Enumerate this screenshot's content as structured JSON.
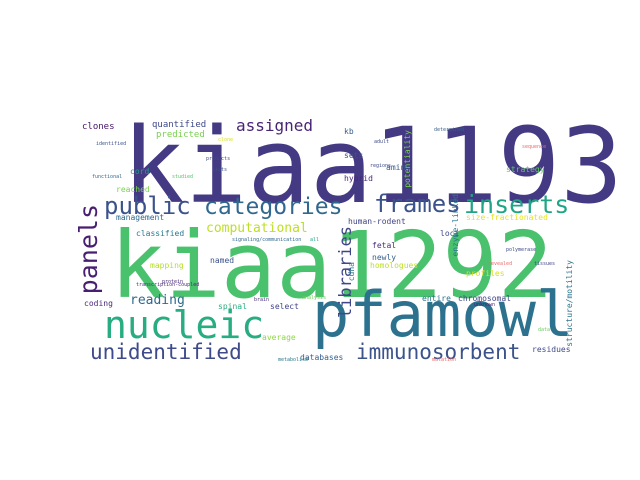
{
  "words": [
    {
      "text": "kiaa1193",
      "color": "#443983"
    },
    {
      "text": "kiaa1292",
      "color": "#4ac16d"
    },
    {
      "text": "pfamowl",
      "color": "#2c728e"
    },
    {
      "text": "nucleic",
      "color": "#27ad81"
    },
    {
      "text": "inserts",
      "color": "#20a486"
    },
    {
      "text": "frames",
      "color": "#3b528b"
    },
    {
      "text": "categories",
      "color": "#31688e"
    },
    {
      "text": "public",
      "color": "#3b528b"
    },
    {
      "text": "panels",
      "color": "#481f70"
    },
    {
      "text": "unidentified",
      "color": "#3e4a89"
    },
    {
      "text": "immunosorbent",
      "color": "#3b528b"
    },
    {
      "text": "assigned",
      "color": "#482475"
    },
    {
      "text": "libraries",
      "color": "#404688"
    },
    {
      "text": "computational",
      "color": "#bddf26"
    },
    {
      "text": "reading",
      "color": "#31688e"
    },
    {
      "text": "quantified",
      "color": "#3e4a89"
    },
    {
      "text": "predicted",
      "color": "#7ad151"
    },
    {
      "text": "clones",
      "color": "#471365"
    },
    {
      "text": "cord",
      "color": "#1fa088"
    },
    {
      "text": "reached",
      "color": "#7ad151"
    },
    {
      "text": "management",
      "color": "#31688e"
    },
    {
      "text": "classified",
      "color": "#2a788e"
    },
    {
      "text": "mapping",
      "color": "#b5de2b"
    },
    {
      "text": "named",
      "color": "#3b528b"
    },
    {
      "text": "spinal",
      "color": "#27ad81"
    },
    {
      "text": "select",
      "color": "#414487"
    },
    {
      "text": "coding",
      "color": "#482878"
    },
    {
      "text": "average",
      "color": "#8fd744"
    },
    {
      "text": "databases",
      "color": "#355f8d"
    },
    {
      "text": "residues",
      "color": "#3e4a89"
    },
    {
      "text": "chromosomal",
      "color": "#414487"
    },
    {
      "text": "entire",
      "color": "#2c728e"
    },
    {
      "text": "fetal",
      "color": "#472d7b"
    },
    {
      "text": "newly",
      "color": "#355f8d"
    },
    {
      "text": "homologues",
      "color": "#bddf26"
    },
    {
      "text": "profiles",
      "color": "#d8e219"
    },
    {
      "text": "loci",
      "color": "#3e4a89"
    },
    {
      "text": "hybrid",
      "color": "#482878"
    },
    {
      "text": "human-rodent",
      "color": "#414487"
    },
    {
      "text": "sets",
      "color": "#3b528b"
    },
    {
      "text": "amino",
      "color": "#355f8d"
    },
    {
      "text": "strategy",
      "color": "#5ec962"
    },
    {
      "text": "potentiality",
      "color": "#7ad151"
    },
    {
      "text": "enzyme-linked",
      "color": "#29798e"
    },
    {
      "text": "size-fractionated",
      "color": "#e5e419"
    },
    {
      "text": "kb",
      "color": "#355f8d"
    },
    {
      "text": "cdna",
      "color": "#2a788e"
    },
    {
      "text": "structure/motility",
      "color": "#2c728e"
    },
    {
      "text": "signaling/communication",
      "color": "#31688e"
    },
    {
      "text": "transcription-coupled",
      "color": "#482878"
    },
    {
      "text": "identified",
      "color": "#3b528b"
    },
    {
      "text": "functional",
      "color": "#31688e"
    },
    {
      "text": "studied",
      "color": "#52c569"
    },
    {
      "text": "lists",
      "color": "#3b528b"
    },
    {
      "text": "regions",
      "color": "#3e4a89"
    },
    {
      "text": "protein",
      "color": "#482878"
    },
    {
      "text": "brain",
      "color": "#472d7b"
    },
    {
      "text": "metabolism",
      "color": "#2a788e"
    },
    {
      "text": "unknown",
      "color": "#481f70"
    },
    {
      "text": "revealed",
      "color": "#ea6c6c"
    },
    {
      "text": "polymerase",
      "color": "#3e4a89"
    },
    {
      "text": "tissues",
      "color": "#414487"
    },
    {
      "text": "mutation",
      "color": "#ea6c6c"
    },
    {
      "text": "sequence",
      "color": "#ea6c6c"
    },
    {
      "text": "determined",
      "color": "#355f8d"
    },
    {
      "text": "products",
      "color": "#3e4a89"
    },
    {
      "text": "analysis",
      "color": "#6ccd5a"
    },
    {
      "text": "data",
      "color": "#6ccd5a"
    },
    {
      "text": "adult",
      "color": "#3e4a89"
    },
    {
      "text": "clone",
      "color": "#d8e219"
    },
    {
      "text": "all",
      "color": "#20a486"
    }
  ]
}
